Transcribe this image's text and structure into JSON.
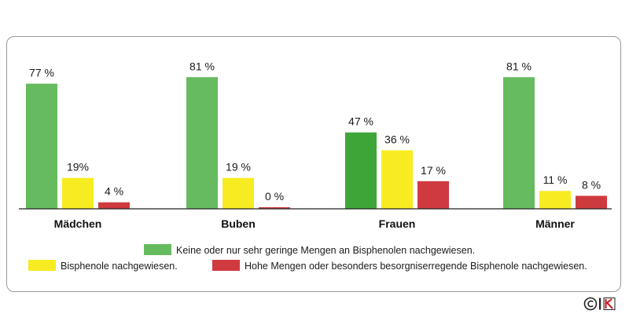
{
  "chart_data": {
    "type": "bar",
    "categories": [
      "Mädchen",
      "Buben",
      "Frauen",
      "Männer"
    ],
    "series": [
      {
        "name": "Keine oder nur sehr geringe Mengen an Bisphenolen nachgewiesen.",
        "color": "#66bb5e",
        "values": [
          77,
          81,
          47,
          81
        ],
        "labels": [
          "77 %",
          "81 %",
          "47 %",
          "81 %"
        ]
      },
      {
        "name": "Bisphenole nachgewiesen.",
        "color": "#f7ec22",
        "values": [
          19,
          19,
          36,
          11
        ],
        "labels": [
          "19%",
          "19 %",
          "36 %",
          "11 %"
        ]
      },
      {
        "name": "Hohe Mengen oder besonders besorgniserregende Bisphenole nachgewiesen.",
        "color": "#cf3a3f",
        "values": [
          4,
          0,
          17,
          8
        ],
        "labels": [
          "4 %",
          "0 %",
          "17 %",
          "8 %"
        ]
      }
    ],
    "highlight": {
      "category": "Frauen",
      "series": 0,
      "color": "#3ea538"
    },
    "ylim": [
      0,
      85
    ],
    "grid": false,
    "legend_position": "bottom"
  },
  "colors": {
    "axis": "#222222",
    "frame": "#9a9a9a",
    "label": "#1a1a1a"
  },
  "logo": {
    "icon": "copyright-vki-logo"
  }
}
